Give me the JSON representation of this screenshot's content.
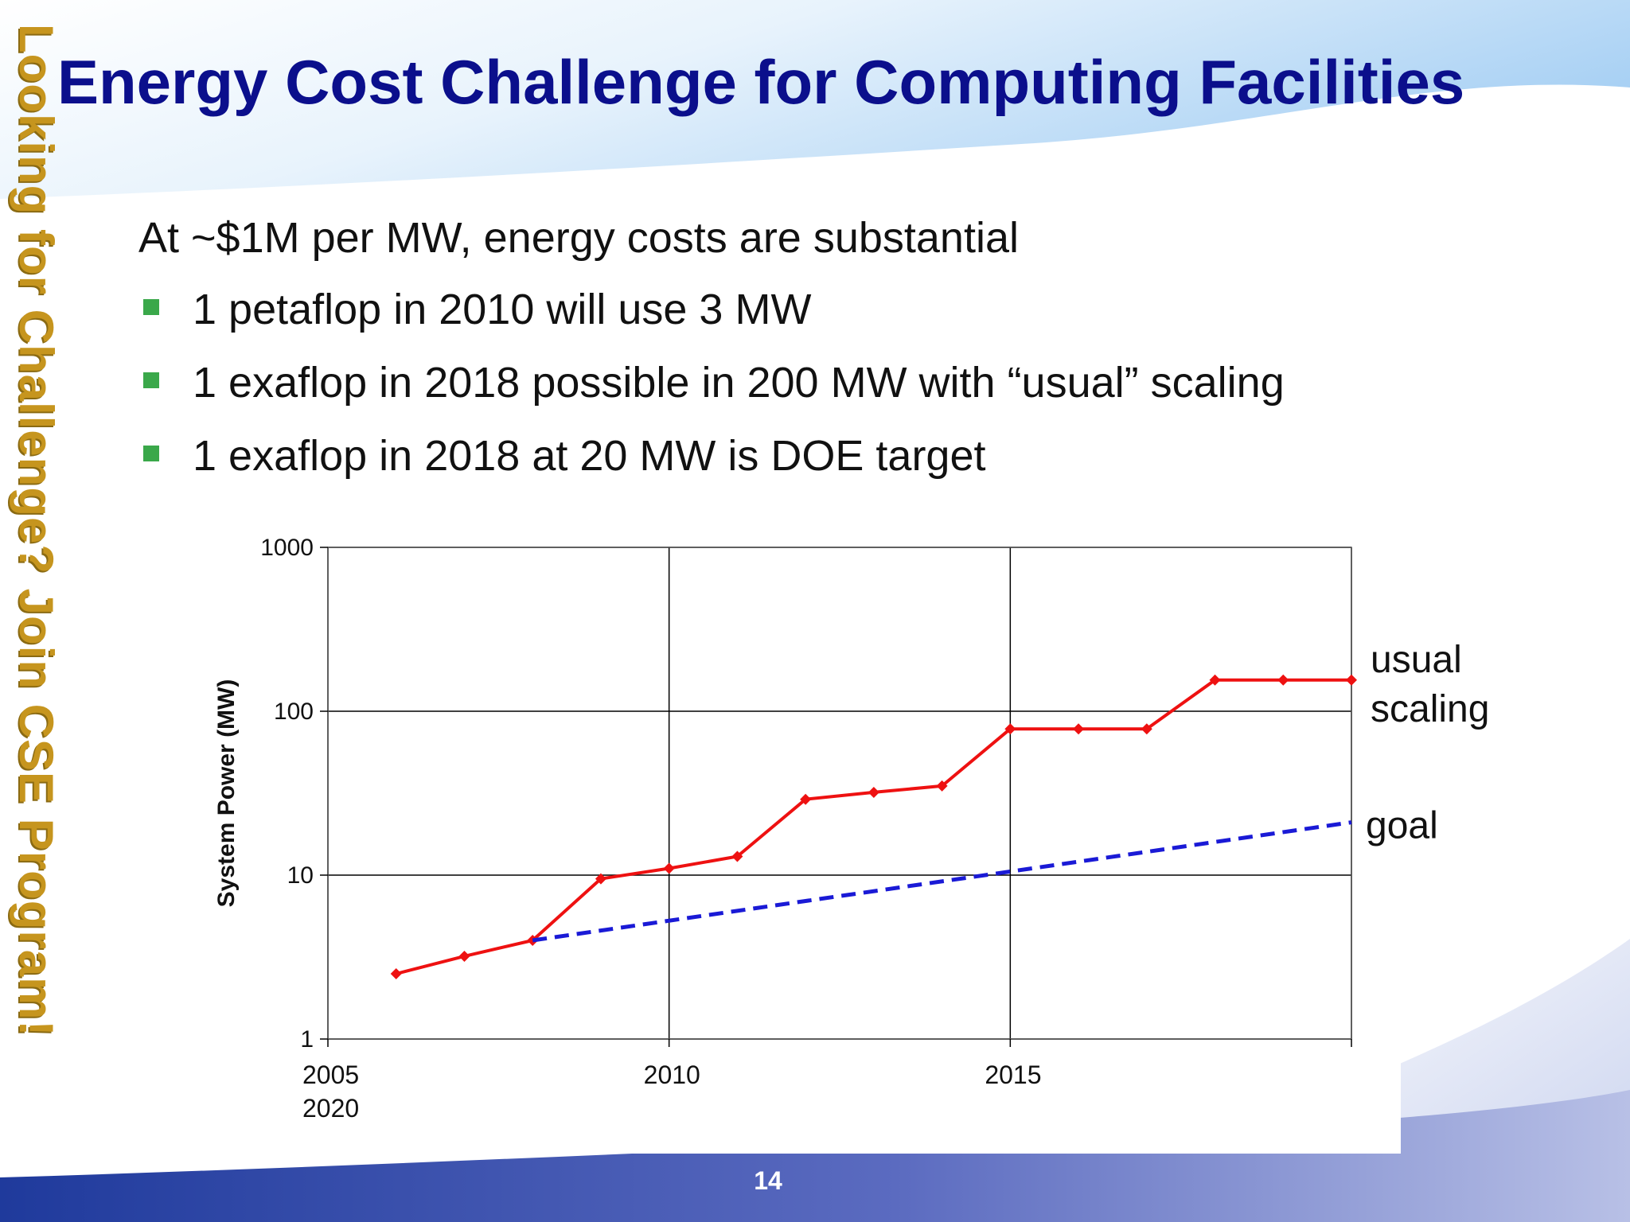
{
  "slide": {
    "side_text": "Looking for Challenge?  Join CSE Program!",
    "title": "Energy Cost Challenge for Computing Facilities",
    "intro": "At ~$1M per MW, energy costs are substantial",
    "bullets": [
      "1 petaflop in 2010 will use 3 MW",
      "1 exaflop in 2018 possible in 200 MW with “usual” scaling",
      "1 exaflop in 2018 at 20 MW is DOE target"
    ],
    "page_number": "14",
    "colors": {
      "title": "#0b0f8c",
      "side_text": "#c6951e",
      "bullet_marker": "#3aa84a",
      "header_sky": "#bcdcf7",
      "footer_band": "#3a4fa8"
    }
  },
  "chart_data": {
    "type": "line",
    "ylabel": "System Power (MW)",
    "yscale": "log",
    "ylim": [
      1,
      1000
    ],
    "y_ticks": [
      "1",
      "10",
      "100",
      "1000"
    ],
    "y_tick_values": [
      1,
      10,
      100,
      1000
    ],
    "xlim": [
      2005,
      2020
    ],
    "x_tick_labels": [
      "2005",
      "2010",
      "2015",
      "2020"
    ],
    "x_tick_values": [
      2005,
      2010,
      2015,
      2020
    ],
    "grid": true,
    "series": [
      {
        "name": "usual scaling",
        "color": "#ee1111",
        "style": "solid",
        "markers": true,
        "x": [
          2006,
          2007,
          2008,
          2009,
          2010,
          2011,
          2012,
          2013,
          2014,
          2015,
          2016,
          2017,
          2018,
          2019,
          2020
        ],
        "y": [
          2.5,
          3.2,
          4.0,
          9.5,
          11,
          13,
          29,
          32,
          35,
          78,
          78,
          78,
          155,
          155,
          155
        ]
      },
      {
        "name": "goal",
        "color": "#1a1ad6",
        "style": "dashed",
        "markers": false,
        "x": [
          2008,
          2020
        ],
        "y": [
          4.0,
          21
        ]
      }
    ]
  }
}
